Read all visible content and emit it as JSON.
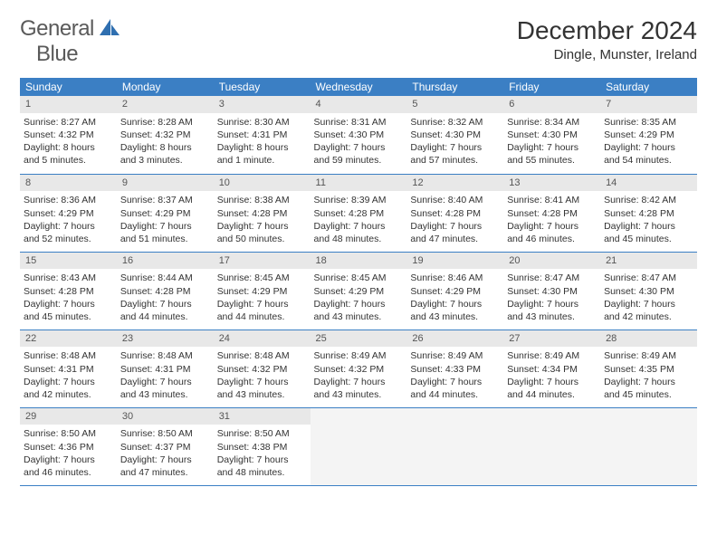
{
  "logo": {
    "word1": "General",
    "word2": "Blue"
  },
  "title": "December 2024",
  "location": "Dingle, Munster, Ireland",
  "colors": {
    "header_bg": "#3b7fc4",
    "header_text": "#ffffff",
    "daynum_bg": "#e8e8e8",
    "border": "#3b7fc4",
    "logo_gray": "#5a5a5a",
    "logo_blue": "#3b7fc4"
  },
  "weekdays": [
    "Sunday",
    "Monday",
    "Tuesday",
    "Wednesday",
    "Thursday",
    "Friday",
    "Saturday"
  ],
  "weeks": [
    [
      {
        "n": "1",
        "sr": "Sunrise: 8:27 AM",
        "ss": "Sunset: 4:32 PM",
        "dl": "Daylight: 8 hours and 5 minutes."
      },
      {
        "n": "2",
        "sr": "Sunrise: 8:28 AM",
        "ss": "Sunset: 4:32 PM",
        "dl": "Daylight: 8 hours and 3 minutes."
      },
      {
        "n": "3",
        "sr": "Sunrise: 8:30 AM",
        "ss": "Sunset: 4:31 PM",
        "dl": "Daylight: 8 hours and 1 minute."
      },
      {
        "n": "4",
        "sr": "Sunrise: 8:31 AM",
        "ss": "Sunset: 4:30 PM",
        "dl": "Daylight: 7 hours and 59 minutes."
      },
      {
        "n": "5",
        "sr": "Sunrise: 8:32 AM",
        "ss": "Sunset: 4:30 PM",
        "dl": "Daylight: 7 hours and 57 minutes."
      },
      {
        "n": "6",
        "sr": "Sunrise: 8:34 AM",
        "ss": "Sunset: 4:30 PM",
        "dl": "Daylight: 7 hours and 55 minutes."
      },
      {
        "n": "7",
        "sr": "Sunrise: 8:35 AM",
        "ss": "Sunset: 4:29 PM",
        "dl": "Daylight: 7 hours and 54 minutes."
      }
    ],
    [
      {
        "n": "8",
        "sr": "Sunrise: 8:36 AM",
        "ss": "Sunset: 4:29 PM",
        "dl": "Daylight: 7 hours and 52 minutes."
      },
      {
        "n": "9",
        "sr": "Sunrise: 8:37 AM",
        "ss": "Sunset: 4:29 PM",
        "dl": "Daylight: 7 hours and 51 minutes."
      },
      {
        "n": "10",
        "sr": "Sunrise: 8:38 AM",
        "ss": "Sunset: 4:28 PM",
        "dl": "Daylight: 7 hours and 50 minutes."
      },
      {
        "n": "11",
        "sr": "Sunrise: 8:39 AM",
        "ss": "Sunset: 4:28 PM",
        "dl": "Daylight: 7 hours and 48 minutes."
      },
      {
        "n": "12",
        "sr": "Sunrise: 8:40 AM",
        "ss": "Sunset: 4:28 PM",
        "dl": "Daylight: 7 hours and 47 minutes."
      },
      {
        "n": "13",
        "sr": "Sunrise: 8:41 AM",
        "ss": "Sunset: 4:28 PM",
        "dl": "Daylight: 7 hours and 46 minutes."
      },
      {
        "n": "14",
        "sr": "Sunrise: 8:42 AM",
        "ss": "Sunset: 4:28 PM",
        "dl": "Daylight: 7 hours and 45 minutes."
      }
    ],
    [
      {
        "n": "15",
        "sr": "Sunrise: 8:43 AM",
        "ss": "Sunset: 4:28 PM",
        "dl": "Daylight: 7 hours and 45 minutes."
      },
      {
        "n": "16",
        "sr": "Sunrise: 8:44 AM",
        "ss": "Sunset: 4:28 PM",
        "dl": "Daylight: 7 hours and 44 minutes."
      },
      {
        "n": "17",
        "sr": "Sunrise: 8:45 AM",
        "ss": "Sunset: 4:29 PM",
        "dl": "Daylight: 7 hours and 44 minutes."
      },
      {
        "n": "18",
        "sr": "Sunrise: 8:45 AM",
        "ss": "Sunset: 4:29 PM",
        "dl": "Daylight: 7 hours and 43 minutes."
      },
      {
        "n": "19",
        "sr": "Sunrise: 8:46 AM",
        "ss": "Sunset: 4:29 PM",
        "dl": "Daylight: 7 hours and 43 minutes."
      },
      {
        "n": "20",
        "sr": "Sunrise: 8:47 AM",
        "ss": "Sunset: 4:30 PM",
        "dl": "Daylight: 7 hours and 43 minutes."
      },
      {
        "n": "21",
        "sr": "Sunrise: 8:47 AM",
        "ss": "Sunset: 4:30 PM",
        "dl": "Daylight: 7 hours and 42 minutes."
      }
    ],
    [
      {
        "n": "22",
        "sr": "Sunrise: 8:48 AM",
        "ss": "Sunset: 4:31 PM",
        "dl": "Daylight: 7 hours and 42 minutes."
      },
      {
        "n": "23",
        "sr": "Sunrise: 8:48 AM",
        "ss": "Sunset: 4:31 PM",
        "dl": "Daylight: 7 hours and 43 minutes."
      },
      {
        "n": "24",
        "sr": "Sunrise: 8:48 AM",
        "ss": "Sunset: 4:32 PM",
        "dl": "Daylight: 7 hours and 43 minutes."
      },
      {
        "n": "25",
        "sr": "Sunrise: 8:49 AM",
        "ss": "Sunset: 4:32 PM",
        "dl": "Daylight: 7 hours and 43 minutes."
      },
      {
        "n": "26",
        "sr": "Sunrise: 8:49 AM",
        "ss": "Sunset: 4:33 PM",
        "dl": "Daylight: 7 hours and 44 minutes."
      },
      {
        "n": "27",
        "sr": "Sunrise: 8:49 AM",
        "ss": "Sunset: 4:34 PM",
        "dl": "Daylight: 7 hours and 44 minutes."
      },
      {
        "n": "28",
        "sr": "Sunrise: 8:49 AM",
        "ss": "Sunset: 4:35 PM",
        "dl": "Daylight: 7 hours and 45 minutes."
      }
    ],
    [
      {
        "n": "29",
        "sr": "Sunrise: 8:50 AM",
        "ss": "Sunset: 4:36 PM",
        "dl": "Daylight: 7 hours and 46 minutes."
      },
      {
        "n": "30",
        "sr": "Sunrise: 8:50 AM",
        "ss": "Sunset: 4:37 PM",
        "dl": "Daylight: 7 hours and 47 minutes."
      },
      {
        "n": "31",
        "sr": "Sunrise: 8:50 AM",
        "ss": "Sunset: 4:38 PM",
        "dl": "Daylight: 7 hours and 48 minutes."
      },
      {
        "empty": true
      },
      {
        "empty": true
      },
      {
        "empty": true
      },
      {
        "empty": true
      }
    ]
  ]
}
